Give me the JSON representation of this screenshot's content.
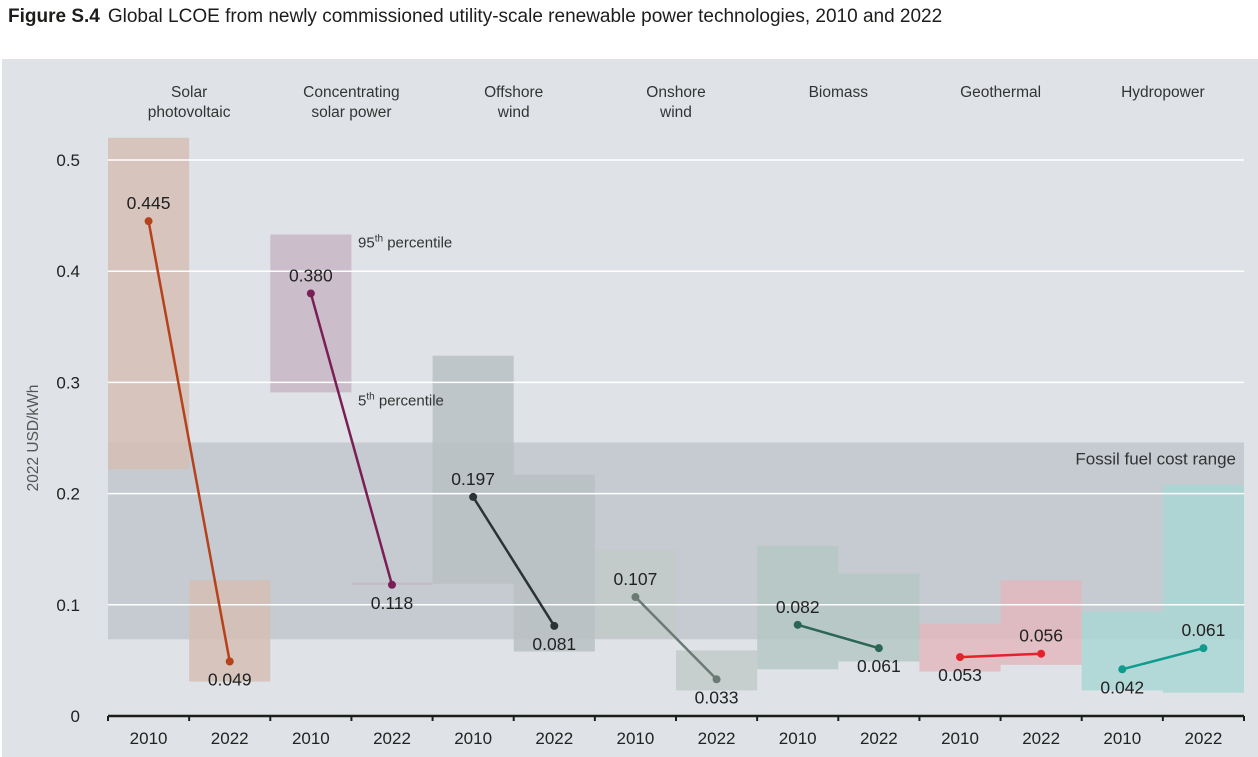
{
  "figure": {
    "number": "Figure S.4",
    "caption": "Global LCOE from newly commissioned utility-scale renewable power technologies, 2010 and 2022"
  },
  "chart_data": {
    "type": "bar",
    "subtype": "floating-range-with-weighted-average-line",
    "title": "Global LCOE from newly commissioned utility-scale renewable power technologies, 2010 and 2022",
    "xlabel": "",
    "ylabel": "2022 USD/kWh",
    "ylim": [
      0,
      0.5
    ],
    "yticks": [
      0,
      0.1,
      0.2,
      0.3,
      0.4,
      0.5
    ],
    "ytick_labels": [
      "0",
      "0.1",
      "0.2",
      "0.3",
      "0.4",
      "0.5"
    ],
    "grid": true,
    "years": [
      "2010",
      "2022"
    ],
    "fossil_fuel_range": {
      "label": "Fossil fuel cost range",
      "low": 0.069,
      "high": 0.246
    },
    "annotations": {
      "p95": {
        "base": "95",
        "sup": "th",
        "text": "percentile",
        "value": 0.433
      },
      "p5": {
        "base": "5",
        "sup": "th",
        "text": "percentile",
        "value": 0.291
      }
    },
    "series": [
      {
        "name": "Solar photovoltaic",
        "label_lines": [
          "Solar",
          "photovoltaic"
        ],
        "bar_color": "#d4bdb3",
        "line_color": "#b5421a",
        "ranges": [
          [
            0.222,
            0.52
          ],
          [
            0.031,
            0.122
          ]
        ],
        "values": [
          0.445,
          0.049
        ],
        "value_labels": [
          "0.445",
          "0.049"
        ]
      },
      {
        "name": "Concentrating solar power",
        "label_lines": [
          "Concentrating",
          "solar power"
        ],
        "bar_color": "#c8b4c4",
        "line_color": "#7a1f55",
        "ranges": [
          [
            0.291,
            0.433
          ],
          [
            0.118,
            0.12
          ]
        ],
        "values": [
          0.38,
          0.118
        ],
        "value_labels": [
          "0.380",
          "0.118"
        ]
      },
      {
        "name": "Offshore wind",
        "label_lines": [
          "Offshore",
          "wind"
        ],
        "bar_color": "#b7bfc2",
        "line_color": "#2a3436",
        "ranges": [
          [
            0.119,
            0.324
          ],
          [
            0.058,
            0.217
          ]
        ],
        "values": [
          0.197,
          0.081
        ],
        "value_labels": [
          "0.197",
          "0.081"
        ]
      },
      {
        "name": "Onshore wind",
        "label_lines": [
          "Onshore",
          "wind"
        ],
        "bar_color": "#c2c9c8",
        "line_color": "#6b7b73",
        "ranges": [
          [
            0.07,
            0.149
          ],
          [
            0.023,
            0.059
          ]
        ],
        "values": [
          0.107,
          0.033
        ],
        "value_labels": [
          "0.107",
          "0.033"
        ]
      },
      {
        "name": "Biomass",
        "label_lines": [
          "Biomass"
        ],
        "bar_color": "#b4c7c5",
        "line_color": "#2a6652",
        "ranges": [
          [
            0.042,
            0.153
          ],
          [
            0.049,
            0.128
          ]
        ],
        "values": [
          0.082,
          0.061
        ],
        "value_labels": [
          "0.082",
          "0.061"
        ]
      },
      {
        "name": "Geothermal",
        "label_lines": [
          "Geothermal"
        ],
        "bar_color": "#e3b7bc",
        "line_color": "#e8202b",
        "ranges": [
          [
            0.04,
            0.083
          ],
          [
            0.046,
            0.122
          ]
        ],
        "values": [
          0.053,
          0.056
        ],
        "value_labels": [
          "0.053",
          "0.056"
        ]
      },
      {
        "name": "Hydropower",
        "label_lines": [
          "Hydropower"
        ],
        "bar_color": "#a9d6d4",
        "line_color": "#0e9c8e",
        "ranges": [
          [
            0.023,
            0.094
          ],
          [
            0.021,
            0.208
          ]
        ],
        "values": [
          0.042,
          0.061
        ],
        "value_labels": [
          "0.042",
          "0.061"
        ]
      }
    ]
  }
}
